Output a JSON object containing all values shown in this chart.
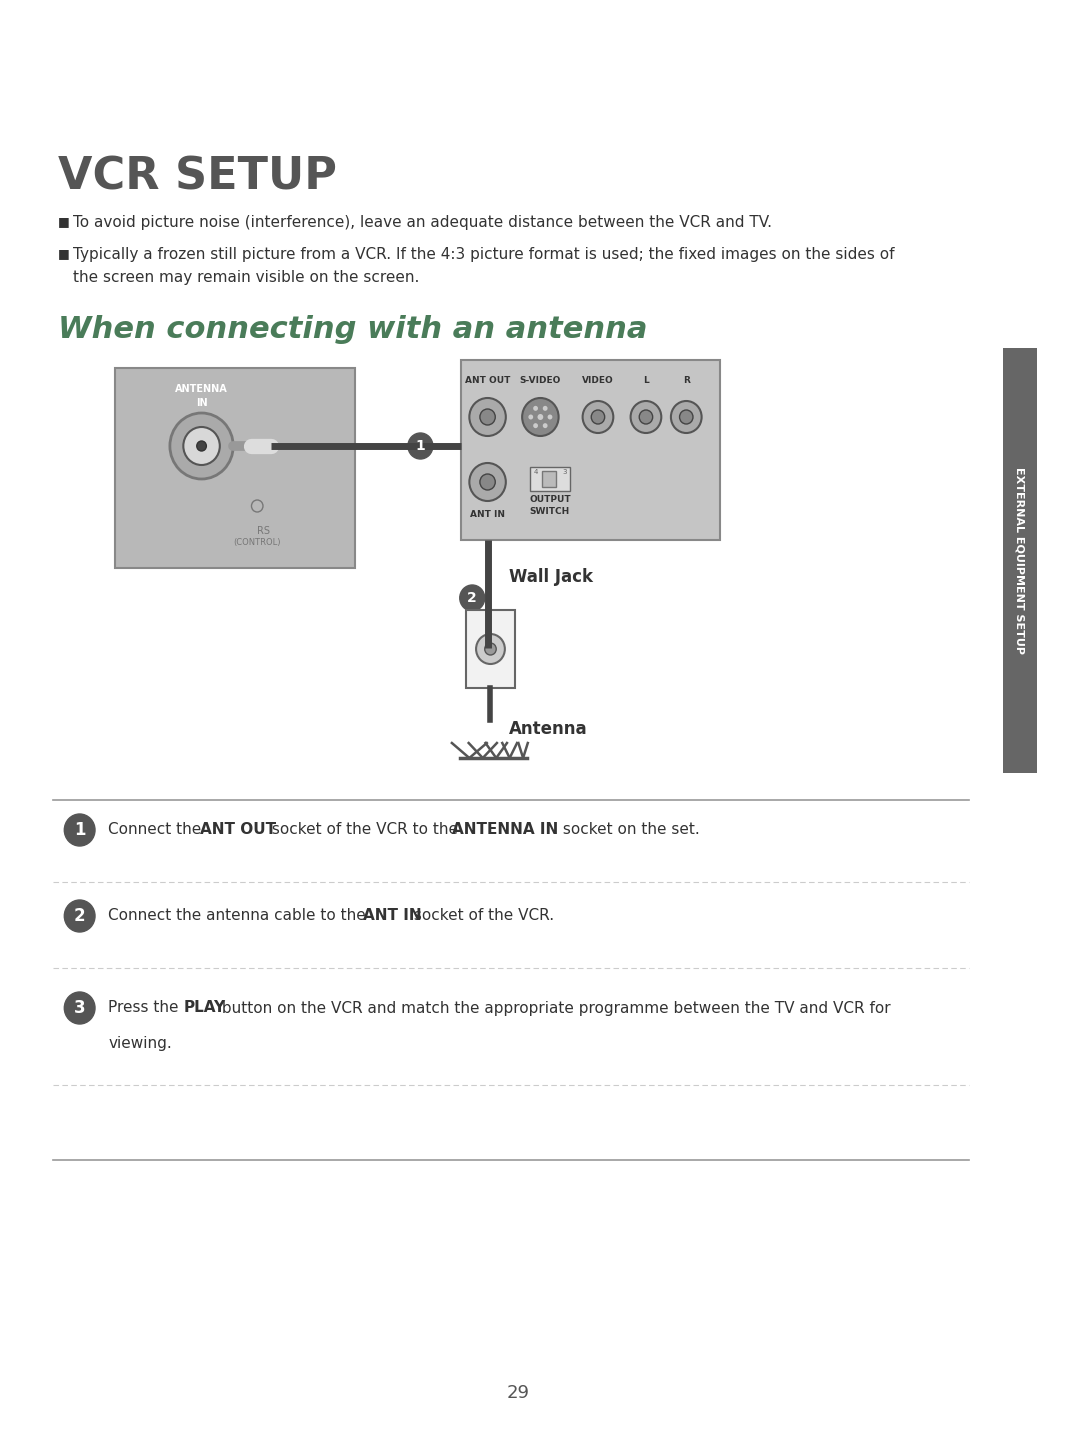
{
  "title": "VCR SETUP",
  "subtitle_section": "When connecting with an antenna",
  "bullet1": "To avoid picture noise (interference), leave an adequate distance between the VCR and TV.",
  "bullet2_part1": "Typically a frozen still picture from a VCR. If the 4:3 picture format is used; the fixed images on the sides of",
  "bullet2_part2": "the screen may remain visible on the screen.",
  "step1_before": "Connect the ",
  "step1_bold1": "ANT OUT",
  "step1_mid": " socket of the VCR to the ",
  "step1_bold2": "ANTENNA IN",
  "step1_after": " socket on the set.",
  "step2_before": "Connect the antenna cable to the ",
  "step2_bold": "ANT IN",
  "step2_after": " socket of the VCR.",
  "step3_before": "Press the ",
  "step3_bold": "PLAY",
  "step3_after": " button on the VCR and match the appropriate programme between the TV and VCR for",
  "step3_after2": "viewing.",
  "side_text": "EXTERNAL EQUIPMENT SETUP",
  "page_number": "29",
  "bg_color": "#ffffff",
  "title_color": "#555555",
  "text_color": "#333333",
  "section_title_color": "#4a7c59",
  "step_circle_color": "#555555",
  "sidebar_color": "#666666"
}
